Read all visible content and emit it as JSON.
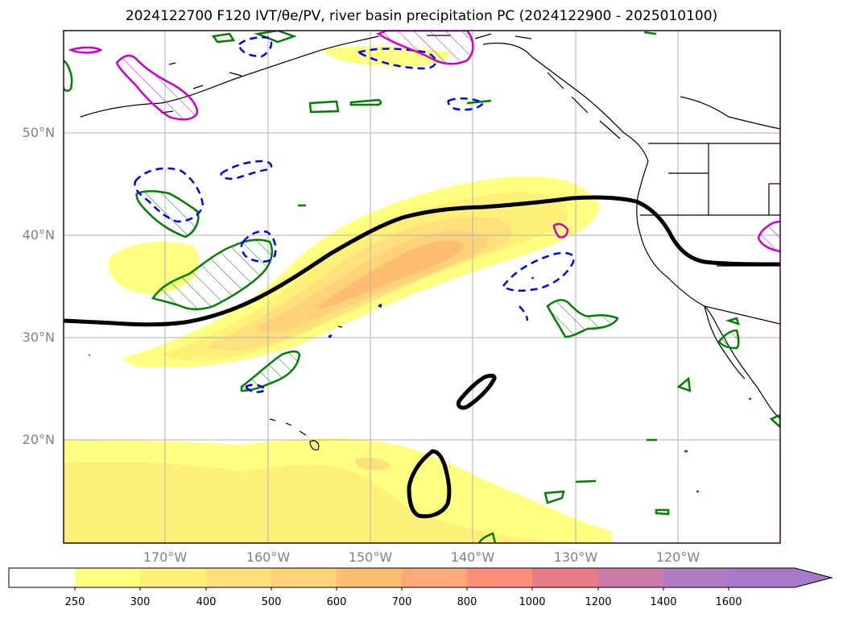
{
  "title": "2024122700 F120 IVT/θe/PV, river basin precipitation PC (2024122900 - 2025010100)",
  "map": {
    "lat_labels": [
      "50°N",
      "40°N",
      "30°N",
      "20°N"
    ],
    "lon_labels": [
      "170°W",
      "160°W",
      "150°W",
      "140°W",
      "130°W",
      "120°W"
    ],
    "fill_levels_colors": [
      "#ffff80",
      "#fff07a",
      "#ffe07a",
      "#ffcc72",
      "#ffb572",
      "#ff9e72",
      "#ff8a7a",
      "#e8788a",
      "#c87aaa",
      "#a67ac8"
    ],
    "contour_colors": {
      "theta_e_line": "#000000",
      "pv_positive": "#008000",
      "pv_negative": "#0000ff",
      "pv_magenta": "#cc00cc",
      "coast": "#000000",
      "grid": "#b0b0b0"
    }
  },
  "colorbar": {
    "ticks": [
      "250",
      "300",
      "400",
      "500",
      "600",
      "700",
      "800",
      "1000",
      "1200",
      "1400",
      "1600"
    ],
    "colors": [
      "#ffffff",
      "#ffff80",
      "#fff07a",
      "#ffe07a",
      "#ffd27a",
      "#ffbd72",
      "#ffa87a",
      "#ff8f7a",
      "#e87c86",
      "#cc7aa6",
      "#b07ac0",
      "#a67ac8"
    ]
  }
}
